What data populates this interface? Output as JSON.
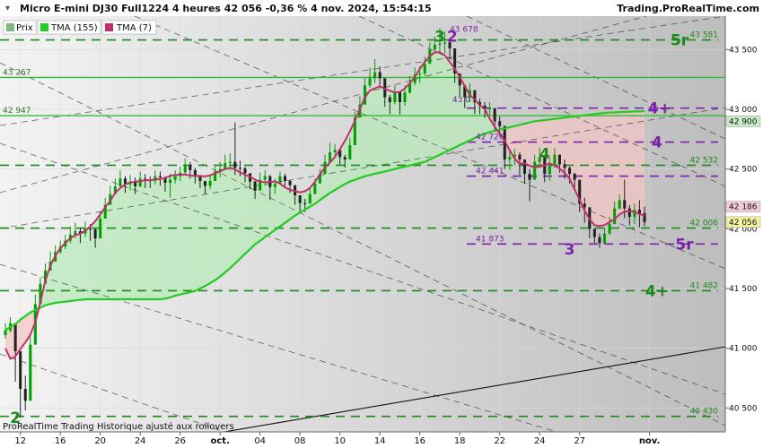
{
  "header": {
    "title": "Micro E-mini DJ30 Full1224 4 heures 42 056 -0,36 % 4 nov. 2024, 15:54:15",
    "brand": "Trading.ProRealTime.com"
  },
  "legend": [
    {
      "label": "Prix",
      "color": "#e05a5a"
    },
    {
      "label": "TMA (155)",
      "color": "#22cc22"
    },
    {
      "label": "TMA (7)",
      "color": "#c0306a"
    }
  ],
  "footer": "ProRealTime Trading Historique ajusté aux rollovers",
  "colors": {
    "up": "#00a000",
    "down": "#222222",
    "level_green": "#1a8a1a",
    "level_purple": "#7b22a8",
    "tma7": "#c0306a",
    "tma155": "#22cc22"
  },
  "chart_data": {
    "type": "candlestick",
    "title": "Micro E-mini DJ30 Full1224 4 heures",
    "ylim": [
      40300,
      43780
    ],
    "y_ticks": [
      40500,
      41000,
      41500,
      42000,
      42500,
      43000,
      43500
    ],
    "y_tick_labels": [
      "40 500",
      "41 000",
      "41 500",
      "42 000",
      "42 500",
      "43 000",
      "43 500"
    ],
    "x_ticks": [
      {
        "i": 3,
        "label": "12"
      },
      {
        "i": 11,
        "label": "16"
      },
      {
        "i": 19,
        "label": "20"
      },
      {
        "i": 27,
        "label": "24"
      },
      {
        "i": 35,
        "label": "26"
      },
      {
        "i": 43,
        "label": "oct."
      },
      {
        "i": 51,
        "label": "04"
      },
      {
        "i": 59,
        "label": "08"
      },
      {
        "i": 67,
        "label": "10"
      },
      {
        "i": 75,
        "label": "14"
      },
      {
        "i": 83,
        "label": "16"
      },
      {
        "i": 91,
        "label": "18"
      },
      {
        "i": 99,
        "label": "22"
      },
      {
        "i": 107,
        "label": "24"
      },
      {
        "i": 115,
        "label": "27"
      },
      {
        "i": 129,
        "label": "nov."
      }
    ],
    "close": [
      41150,
      41210,
      40975,
      40660,
      40560,
      41030,
      41370,
      41540,
      41650,
      41725,
      41805,
      41850,
      41900,
      41950,
      41980,
      41960,
      42000,
      41995,
      41920,
      42085,
      42200,
      42290,
      42355,
      42420,
      42370,
      42390,
      42355,
      42420,
      42410,
      42400,
      42440,
      42430,
      42385,
      42410,
      42440,
      42470,
      42530,
      42490,
      42440,
      42400,
      42360,
      42400,
      42480,
      42500,
      42550,
      42560,
      42510,
      42505,
      42465,
      42395,
      42320,
      42410,
      42440,
      42350,
      42375,
      42440,
      42400,
      42365,
      42280,
      42215,
      42210,
      42290,
      42380,
      42460,
      42560,
      42640,
      42660,
      42600,
      42580,
      42700,
      42930,
      43040,
      43200,
      43260,
      43310,
      43260,
      43100,
      43060,
      43150,
      43060,
      43140,
      43220,
      43290,
      43300,
      43380,
      43500,
      43540,
      43550,
      43560,
      43510,
      43300,
      43200,
      43100,
      43160,
      43060,
      43030,
      43000,
      43010,
      42900,
      42860,
      42580,
      42600,
      42620,
      42580,
      42460,
      42410,
      42560,
      42600,
      42460,
      42530,
      42620,
      42540,
      42510,
      42460,
      42410,
      42210,
      42180,
      42000,
      41930,
      41880,
      41960,
      42040,
      42170,
      42240,
      42170,
      42100,
      42160,
      42130,
      42056
    ],
    "high": [
      41210,
      41260,
      41070,
      40870,
      40770,
      41100,
      41450,
      41590,
      41710,
      41810,
      41860,
      41900,
      41950,
      42020,
      42050,
      42010,
      42060,
      42040,
      42000,
      42150,
      42260,
      42360,
      42420,
      42490,
      42440,
      42450,
      42430,
      42480,
      42460,
      42440,
      42490,
      42480,
      42440,
      42460,
      42490,
      42520,
      42590,
      42560,
      42510,
      42440,
      42400,
      42450,
      42520,
      42560,
      42620,
      42630,
      42890,
      42570,
      42520,
      42450,
      42400,
      42470,
      42490,
      42450,
      42420,
      42480,
      42460,
      42410,
      42340,
      42260,
      42250,
      42340,
      42420,
      42500,
      42620,
      42720,
      42710,
      42660,
      42620,
      42760,
      42980,
      43110,
      43260,
      43350,
      43420,
      43360,
      43180,
      43120,
      43200,
      43100,
      43200,
      43280,
      43350,
      43360,
      43440,
      43560,
      43610,
      43678,
      43650,
      43580,
      43420,
      43280,
      43210,
      43220,
      43160,
      43090,
      43060,
      43060,
      42960,
      42940,
      42680,
      42660,
      42670,
      42640,
      42560,
      42500,
      42620,
      42680,
      42520,
      42600,
      42680,
      42620,
      42580,
      42520,
      42470,
      42280,
      42260,
      42060,
      42000,
      41960,
      42010,
      42100,
      42230,
      42290,
      42410,
      42200,
      42210,
      42240,
      42186
    ],
    "low": [
      41080,
      41130,
      40720,
      40420,
      40480,
      40840,
      41300,
      41460,
      41600,
      41660,
      41740,
      41790,
      41830,
      41880,
      41920,
      41880,
      41930,
      41900,
      41840,
      41990,
      42120,
      42220,
      42290,
      42350,
      42300,
      42320,
      42290,
      42350,
      42340,
      42340,
      42370,
      42360,
      42310,
      42260,
      42380,
      42400,
      42460,
      42420,
      42380,
      42340,
      42290,
      42330,
      42420,
      42430,
      42490,
      42490,
      42450,
      42440,
      42390,
      42330,
      42250,
      42320,
      42360,
      42240,
      42290,
      42370,
      42340,
      42300,
      42200,
      42130,
      42140,
      42220,
      42300,
      42380,
      42490,
      42570,
      42590,
      42540,
      42510,
      42620,
      42860,
      42970,
      43110,
      43180,
      43220,
      43190,
      43020,
      42960,
      43040,
      42960,
      43030,
      43130,
      43200,
      43220,
      43280,
      43420,
      43470,
      43480,
      43470,
      43420,
      43220,
      43110,
      43010,
      43060,
      42960,
      42960,
      42930,
      42950,
      42820,
      42780,
      42500,
      42490,
      42530,
      42450,
      42380,
      42230,
      42470,
      42520,
      42390,
      42400,
      42510,
      42470,
      42420,
      42380,
      42340,
      42140,
      42050,
      41920,
      41880,
      41840,
      41900,
      41950,
      42100,
      42160,
      42090,
      42030,
      42040,
      42010,
      42020
    ],
    "tma155": [
      41150,
      41180,
      41200,
      41240,
      41270,
      41300,
      41320,
      41340,
      41360,
      41370,
      41380,
      41385,
      41390,
      41395,
      41400,
      41405,
      41410,
      41410,
      41410,
      41410,
      41410,
      41410,
      41410,
      41410,
      41410,
      41410,
      41410,
      41410,
      41410,
      41410,
      41410,
      41410,
      41415,
      41425,
      41440,
      41450,
      41460,
      41470,
      41480,
      41500,
      41520,
      41545,
      41570,
      41600,
      41635,
      41670,
      41710,
      41750,
      41790,
      41830,
      41870,
      41900,
      41930,
      41960,
      41990,
      42020,
      42050,
      42080,
      42110,
      42135,
      42160,
      42185,
      42210,
      42240,
      42270,
      42300,
      42325,
      42350,
      42375,
      42395,
      42410,
      42425,
      42440,
      42450,
      42460,
      42470,
      42480,
      42490,
      42500,
      42510,
      42520,
      42530,
      42540,
      42550,
      42560,
      42580,
      42600,
      42620,
      42640,
      42660,
      42680,
      42700,
      42720,
      42740,
      42760,
      42780,
      42795,
      42810,
      42820,
      42830,
      42840,
      42850,
      42860,
      42870,
      42880,
      42890,
      42900,
      42905,
      42910,
      42915,
      42920,
      42925,
      42930,
      42935,
      42940,
      42945,
      42950,
      42955,
      42960,
      42965,
      42970,
      42972,
      42974,
      42976,
      42978,
      42980,
      42982,
      42983,
      42984
    ]
  },
  "horizontal_levels": [
    {
      "value": 43267,
      "label": "43 267",
      "style": "solid",
      "side": "left"
    },
    {
      "value": 42947,
      "label": "42 947",
      "style": "solid",
      "side": "left"
    },
    {
      "value": 43581,
      "label": "43 581",
      "style": "dashed",
      "color": "green",
      "side": "right"
    },
    {
      "value": 43010,
      "label": "",
      "style": "dashed",
      "color": "purple"
    },
    {
      "value": 42726,
      "label": "42 726",
      "style": "dashed",
      "color": "purple",
      "side": "mid"
    },
    {
      "value": 42532,
      "label": "42 532",
      "style": "dashed",
      "color": "green",
      "side": "right"
    },
    {
      "value": 42441,
      "label": "42 441",
      "style": "dashed",
      "color": "purple",
      "side": "mid"
    },
    {
      "value": 42006,
      "label": "42 006",
      "style": "dashed",
      "color": "green",
      "side": "right"
    },
    {
      "value": 41873,
      "label": "41 873",
      "style": "dashed",
      "color": "purple",
      "side": "mid"
    },
    {
      "value": 41482,
      "label": "41 482",
      "style": "dashed",
      "color": "green",
      "side": "right"
    },
    {
      "value": 40430,
      "label": "40 430",
      "style": "dashed",
      "color": "green",
      "side": "right"
    }
  ],
  "extra_labels": {
    "peak": "43 678",
    "partial": "43 0"
  },
  "price_tags": [
    {
      "value": 42900,
      "label": "42 900",
      "bg": "#c8ecc8",
      "fg": "#1a6a1a"
    },
    {
      "value": 42186,
      "label": "42 186",
      "bg": "#f3cbd9",
      "fg": "#b03060"
    },
    {
      "value": 42056,
      "label": "42 056",
      "bg": "#f4f4a0",
      "fg": "#111111"
    }
  ],
  "wave_labels": [
    {
      "text": "3",
      "color": "green",
      "i": 87,
      "v": 43610
    },
    {
      "text": "2",
      "color": "purple",
      "i": 89.5,
      "v": 43610
    },
    {
      "text": "4",
      "color": "green",
      "i": 108,
      "v": 42630
    },
    {
      "text": "3",
      "color": "purple",
      "i": 113,
      "v": 41830
    },
    {
      "text": "2",
      "color": "green",
      "i": 2,
      "v": 40420
    },
    {
      "text": "5r",
      "color": "green",
      "i": 135,
      "v": 43581
    },
    {
      "text": "4+",
      "color": "purple",
      "i": 131,
      "v": 43010
    },
    {
      "text": "4",
      "color": "purple",
      "i": 130.5,
      "v": 42726
    },
    {
      "text": "5r",
      "color": "purple",
      "i": 136,
      "v": 41873
    },
    {
      "text": "4+",
      "color": "green",
      "i": 130.5,
      "v": 41482
    }
  ]
}
